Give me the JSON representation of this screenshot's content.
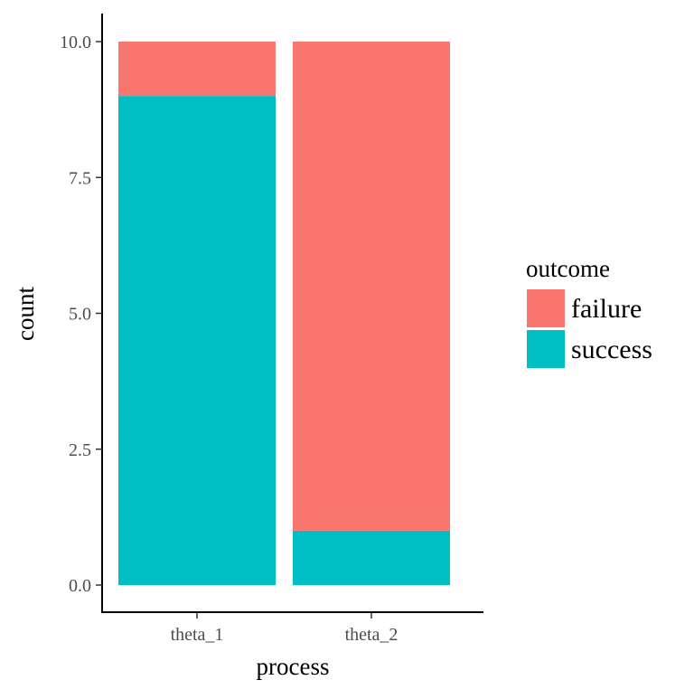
{
  "chart_data": {
    "type": "bar",
    "stacked": true,
    "categories": [
      "theta_1",
      "theta_2"
    ],
    "series": [
      {
        "name": "failure",
        "values": [
          1,
          9
        ],
        "color": "#F8766D"
      },
      {
        "name": "success",
        "values": [
          9,
          1
        ],
        "color": "#00BFC4"
      }
    ],
    "stack_order": [
      "success",
      "failure"
    ],
    "xlabel": "process",
    "ylabel": "count",
    "ylim": [
      0,
      10
    ],
    "yticks": [
      0,
      2.5,
      5,
      7.5,
      10
    ],
    "ytick_labels": [
      "0.0",
      "2.5",
      "5.0",
      "7.5",
      "10.0"
    ],
    "legend": {
      "title": "outcome",
      "entries": [
        "failure",
        "success"
      ],
      "placement": "right"
    },
    "grid": false
  }
}
